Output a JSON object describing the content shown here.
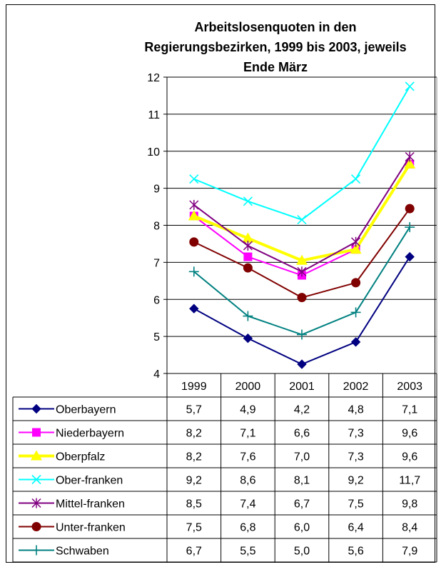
{
  "chart_data": {
    "type": "line",
    "title_lines": [
      "Arbeitslosenquoten in den",
      "Regierungsbezirken,  1999 bis 2003, jeweils",
      "Ende März"
    ],
    "categories": [
      "1999",
      "2000",
      "2001",
      "2002",
      "2003"
    ],
    "ylim": [
      4,
      12
    ],
    "yticks": [
      "4",
      "5",
      "6",
      "7",
      "8",
      "9",
      "10",
      "11",
      "12"
    ],
    "grid": true,
    "legend": "data-table",
    "series": [
      {
        "name": "Oberbayern",
        "color": "#000080",
        "marker": "diamond",
        "values": [
          5.75,
          4.95,
          4.25,
          4.85,
          7.15
        ],
        "labels": [
          "5,7",
          "4,9",
          "4,2",
          "4,8",
          "7,1"
        ]
      },
      {
        "name": "Niederbayern",
        "color": "#ff00ff",
        "marker": "square",
        "values": [
          8.25,
          7.15,
          6.65,
          7.35,
          9.65
        ],
        "labels": [
          "8,2",
          "7,1",
          "6,6",
          "7,3",
          "9,6"
        ]
      },
      {
        "name": "Oberpfalz",
        "color": "#ffff00",
        "marker": "triangle",
        "values": [
          8.25,
          7.65,
          7.05,
          7.35,
          9.65
        ],
        "labels": [
          "8,2",
          "7,6",
          "7,0",
          "7,3",
          "9,6"
        ]
      },
      {
        "name": "Ober-franken",
        "color": "#00ffff",
        "marker": "x",
        "values": [
          9.25,
          8.65,
          8.15,
          9.25,
          11.75
        ],
        "labels": [
          "9,2",
          "8,6",
          "8,1",
          "9,2",
          "11,7"
        ]
      },
      {
        "name": "Mittel-franken",
        "color": "#800080",
        "marker": "star",
        "values": [
          8.55,
          7.45,
          6.75,
          7.55,
          9.85
        ],
        "labels": [
          "8,5",
          "7,4",
          "6,7",
          "7,5",
          "9,8"
        ]
      },
      {
        "name": "Unter-franken",
        "color": "#800000",
        "marker": "circle",
        "values": [
          7.55,
          6.85,
          6.05,
          6.45,
          8.45
        ],
        "labels": [
          "7,5",
          "6,8",
          "6,0",
          "6,4",
          "8,4"
        ]
      },
      {
        "name": "Schwaben",
        "color": "#008080",
        "marker": "plus",
        "values": [
          6.75,
          5.55,
          5.05,
          5.65,
          7.95
        ],
        "labels": [
          "6,7",
          "5,5",
          "5,0",
          "5,6",
          "7,9"
        ]
      }
    ]
  }
}
